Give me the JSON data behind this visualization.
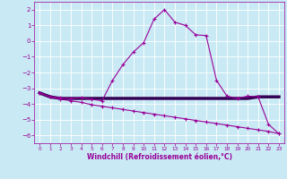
{
  "xlabel": "Windchill (Refroidissement éolien,°C)",
  "x": [
    0,
    1,
    2,
    3,
    4,
    5,
    6,
    7,
    8,
    9,
    10,
    11,
    12,
    13,
    14,
    15,
    16,
    17,
    18,
    19,
    20,
    21,
    22,
    23
  ],
  "line1_y": [
    -3.3,
    -3.55,
    -3.65,
    -3.65,
    -3.65,
    -3.65,
    -3.65,
    -3.65,
    -3.65,
    -3.65,
    -3.65,
    -3.65,
    -3.65,
    -3.65,
    -3.65,
    -3.65,
    -3.65,
    -3.65,
    -3.65,
    -3.65,
    -3.65,
    -3.55,
    -3.55,
    -3.55
  ],
  "line2_y": [
    -3.3,
    -3.55,
    -3.6,
    -3.65,
    -3.6,
    -3.7,
    -3.8,
    -2.5,
    -1.5,
    -0.7,
    -0.1,
    1.4,
    2.0,
    1.2,
    1.0,
    0.4,
    0.35,
    -2.5,
    -3.5,
    -3.65,
    -3.5,
    -3.55,
    -5.3,
    -5.9
  ],
  "line3_y": [
    -3.3,
    -3.55,
    -3.7,
    -3.8,
    -3.9,
    -4.05,
    -4.15,
    -4.25,
    -4.35,
    -4.45,
    -4.55,
    -4.65,
    -4.75,
    -4.85,
    -4.95,
    -5.05,
    -5.15,
    -5.25,
    -5.35,
    -5.45,
    -5.55,
    -5.65,
    -5.75,
    -5.9
  ],
  "line_color": "#990099",
  "line1_color": "#330055",
  "bg_color": "#c9eaf4",
  "grid_color": "#ffffff",
  "ylim": [
    -6.5,
    2.5
  ],
  "xlim": [
    -0.5,
    23.5
  ],
  "yticks": [
    2,
    1,
    0,
    -1,
    -2,
    -3,
    -4,
    -5,
    -6
  ],
  "xticks": [
    0,
    1,
    2,
    3,
    4,
    5,
    6,
    7,
    8,
    9,
    10,
    11,
    12,
    13,
    14,
    15,
    16,
    17,
    18,
    19,
    20,
    21,
    22,
    23
  ]
}
